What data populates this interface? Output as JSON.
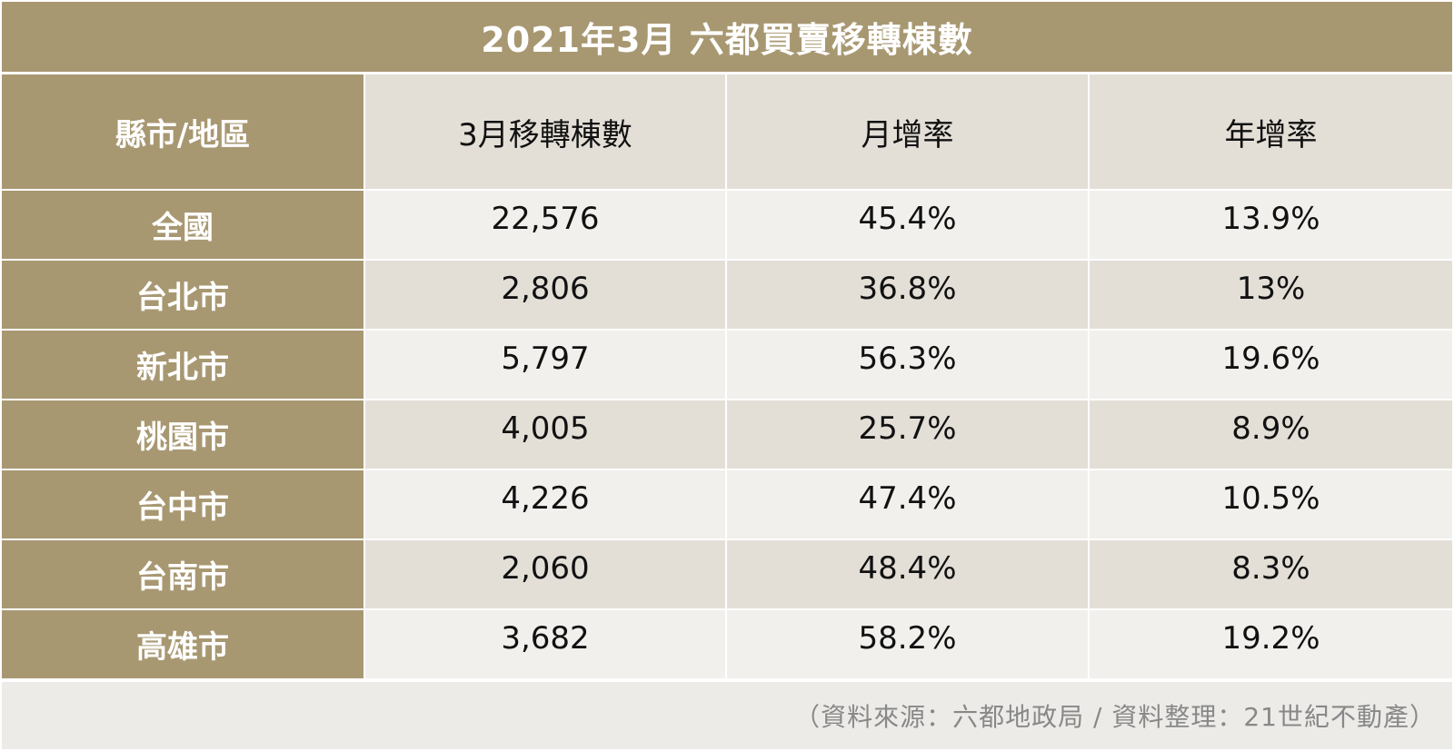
{
  "chart_data": {
    "type": "table",
    "title": "2021年3月 六都買賣移轉棟數",
    "columns": [
      "縣市/地區",
      "3月移轉棟數",
      "月增率",
      "年增率"
    ],
    "rows": [
      {
        "region": "全國",
        "transfers": "22,576",
        "mom": "45.4%",
        "yoy": "13.9%"
      },
      {
        "region": "台北市",
        "transfers": "2,806",
        "mom": "36.8%",
        "yoy": "13%"
      },
      {
        "region": "新北市",
        "transfers": "5,797",
        "mom": "56.3%",
        "yoy": "19.6%"
      },
      {
        "region": "桃園市",
        "transfers": "4,005",
        "mom": "25.7%",
        "yoy": "8.9%"
      },
      {
        "region": "台中市",
        "transfers": "4,226",
        "mom": "47.4%",
        "yoy": "10.5%"
      },
      {
        "region": "台南市",
        "transfers": "2,060",
        "mom": "48.4%",
        "yoy": "8.3%"
      },
      {
        "region": "高雄市",
        "transfers": "3,682",
        "mom": "58.2%",
        "yoy": "19.2%"
      }
    ],
    "source_note": "（資料來源：六都地政局 / 資料整理：21世紀不動產）"
  },
  "colors": {
    "header_brown": "#a89872",
    "row_light": "#f1f0ed",
    "row_dark": "#e3dfd7",
    "footer_bg": "#ecebe8"
  }
}
